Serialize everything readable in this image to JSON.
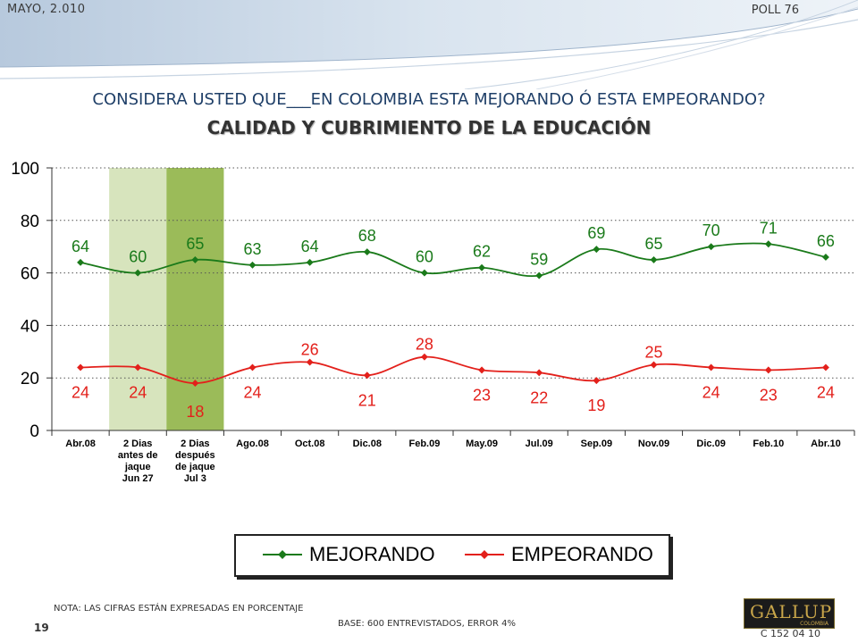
{
  "header": {
    "left": "MAYO, 2.010",
    "right": "POLL 76"
  },
  "question": "CONSIDERA USTED QUE___EN COLOMBIA ESTA MEJORANDO Ó ESTA EMPEORANDO?",
  "subtitle": "CALIDAD Y CUBRIMIENTO DE LA EDUCACIÓN",
  "chart_data": {
    "type": "line",
    "categories": [
      [
        "Abr.08"
      ],
      [
        "2 Dias",
        "antes de",
        "jaque",
        "Jun 27"
      ],
      [
        "2 Dias",
        "después",
        "de jaque",
        "Jul 3"
      ],
      [
        "Ago.08"
      ],
      [
        "Oct.08"
      ],
      [
        "Dic.08"
      ],
      [
        "Feb.09"
      ],
      [
        "May.09"
      ],
      [
        "Jul.09"
      ],
      [
        "Sep.09"
      ],
      [
        "Nov.09"
      ],
      [
        "Dic.09"
      ],
      [
        "Feb.10"
      ],
      [
        "Abr.10"
      ]
    ],
    "series": [
      {
        "name": "MEJORANDO",
        "color": "#1a7a1a",
        "values": [
          64,
          60,
          65,
          63,
          64,
          68,
          60,
          62,
          59,
          69,
          65,
          70,
          71,
          66
        ]
      },
      {
        "name": "EMPEORANDO",
        "color": "#e3201b",
        "values": [
          24,
          24,
          18,
          24,
          26,
          21,
          28,
          23,
          22,
          19,
          25,
          24,
          23,
          24
        ]
      }
    ],
    "ylim": [
      0,
      100
    ],
    "yticks": [
      0,
      20,
      40,
      60,
      80,
      100
    ],
    "grid": "dotted-horizontal",
    "highlight_columns": [
      {
        "index": 1,
        "color": "#d7e4bd"
      },
      {
        "index": 2,
        "color": "#9bbb59"
      }
    ],
    "legend_placement": "bottom-center"
  },
  "legend": {
    "mejorando": "MEJORANDO",
    "empeorando": "EMPEORANDO"
  },
  "footer": {
    "note": "NOTA: LAS CIFRAS ESTÁN EXPRESADAS EN PORCENTAJE",
    "base": "BASE: 600 ENTREVISTADOS, ERROR 4%",
    "page": "19",
    "code": "C 152 04 10",
    "logo": {
      "text": "GALLUP",
      "sub": "COLOMBIA"
    }
  }
}
